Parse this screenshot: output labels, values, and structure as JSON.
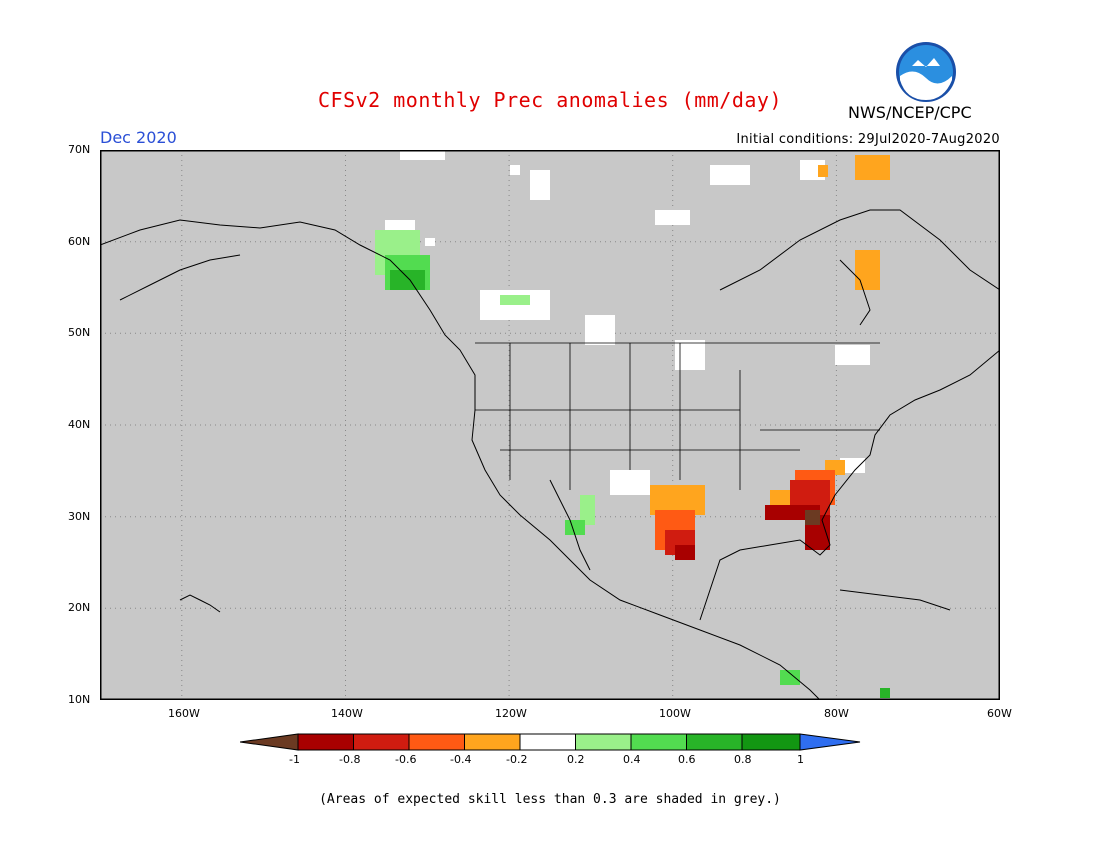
{
  "title": "CFSv2 monthly Prec anomalies (mm/day)",
  "org": "NWS/NCEP/CPC",
  "logo_text": "NOAA",
  "month": "Dec 2020",
  "initial_conditions": "Initial conditions: 29Jul2020-7Aug2020",
  "footnote": "(Areas of expected skill less than 0.3 are shaded in grey.)",
  "map": {
    "lat_labels": [
      "70N",
      "60N",
      "50N",
      "40N",
      "30N",
      "20N",
      "10N"
    ],
    "lon_labels": [
      "160W",
      "140W",
      "120W",
      "100W",
      "80W",
      "60W"
    ],
    "background_color": "#c8c8c8"
  },
  "colorbar": {
    "tick_labels": [
      "-1",
      "-0.8",
      "-0.6",
      "-0.4",
      "-0.2",
      "0.2",
      "0.4",
      "0.6",
      "0.8",
      "1"
    ],
    "colors": [
      "#6b3a22",
      "#a80000",
      "#d01c10",
      "#ff5a14",
      "#ffa51e",
      "#ffffff",
      "#9af08a",
      "#52dc50",
      "#28b428",
      "#129612",
      "#2f6ef0"
    ]
  }
}
